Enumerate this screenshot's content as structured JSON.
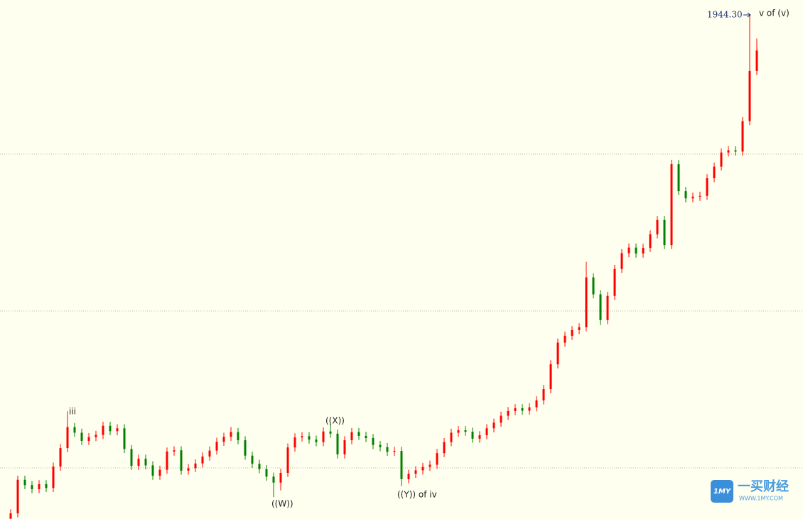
{
  "chart_data": {
    "type": "candlestick",
    "ylim": [
      1783.7,
      1949.1
    ],
    "gridlines": [
      1800,
      1850,
      1900
    ],
    "grid": true,
    "up_color": "#ff0000",
    "down_color": "#008000",
    "annotations": [
      "iii",
      "((W))",
      "((X))",
      "((Y)) of iv",
      "v of (v)"
    ],
    "high_label": "1944.30",
    "open": [
      1783.8,
      1785.5,
      1796.2,
      1794.5,
      1793.2,
      1794.8,
      1793.6,
      1800.4,
      1806.3,
      1813.0,
      1811.2,
      1808.6,
      1809.8,
      1810.5,
      1813.4,
      1811.7,
      1812.6,
      1806.0,
      1800.6,
      1802.9,
      1800.8,
      1797.5,
      1799.4,
      1805.2,
      1805.6,
      1799.1,
      1799.9,
      1801.4,
      1803.6,
      1805.5,
      1808.3,
      1809.9,
      1811.4,
      1808.8,
      1803.9,
      1801.3,
      1799.6,
      1797.2,
      1795.3,
      1798.4,
      1806.5,
      1809.7,
      1810.1,
      1809.0,
      1808.2,
      1811.6,
      1810.9,
      1804.3,
      1808.8,
      1811.4,
      1810.2,
      1809.5,
      1807.3,
      1806.6,
      1805.1,
      1805.4,
      1796.4,
      1798.1,
      1799.2,
      1800.3,
      1801.0,
      1804.7,
      1808.2,
      1811.2,
      1812.0,
      1811.5,
      1809.3,
      1810.4,
      1812.6,
      1814.4,
      1816.6,
      1818.1,
      1819.0,
      1818.2,
      1819.3,
      1821.5,
      1825.1,
      1833.0,
      1839.9,
      1842.1,
      1843.9,
      1844.8,
      1860.7,
      1855.3,
      1847.1,
      1854.8,
      1863.4,
      1868.4,
      1870.2,
      1868.3,
      1870.1,
      1874.4,
      1879.0,
      1871.0,
      1896.8,
      1888.2,
      1885.9,
      1886.4,
      1886.7,
      1892.3,
      1896.0,
      1900.5,
      1901.2,
      1900.8,
      1910.5,
      1926.5
    ],
    "high": [
      1786.8,
      1797.5,
      1797.5,
      1795.8,
      1796.1,
      1796.1,
      1801.7,
      1807.6,
      1818.0,
      1814.3,
      1812.5,
      1811.1,
      1811.8,
      1814.7,
      1814.7,
      1813.9,
      1813.9,
      1807.3,
      1804.2,
      1804.2,
      1802.1,
      1800.7,
      1806.5,
      1806.9,
      1806.9,
      1801.2,
      1802.7,
      1804.9,
      1806.8,
      1809.6,
      1811.2,
      1813.0,
      1812.7,
      1810.1,
      1805.2,
      1802.6,
      1800.9,
      1798.5,
      1799.7,
      1807.8,
      1811.0,
      1811.4,
      1811.4,
      1810.3,
      1812.9,
      1814.2,
      1812.2,
      1810.1,
      1812.7,
      1812.7,
      1811.5,
      1810.8,
      1808.6,
      1807.9,
      1806.7,
      1806.7,
      1799.4,
      1800.5,
      1801.6,
      1802.3,
      1806.0,
      1809.5,
      1812.5,
      1813.3,
      1813.3,
      1812.8,
      1811.7,
      1813.9,
      1815.7,
      1817.9,
      1819.4,
      1820.3,
      1820.3,
      1820.6,
      1822.8,
      1826.4,
      1834.3,
      1841.2,
      1843.4,
      1845.2,
      1846.1,
      1865.7,
      1862.0,
      1856.6,
      1856.1,
      1864.7,
      1869.7,
      1871.5,
      1871.5,
      1871.4,
      1875.7,
      1880.3,
      1880.3,
      1898.2,
      1898.1,
      1889.5,
      1887.7,
      1888.0,
      1893.6,
      1897.3,
      1901.8,
      1902.5,
      1902.5,
      1911.8,
      1944.3,
      1936.8
    ],
    "low": [
      1783.7,
      1784.2,
      1793.2,
      1791.9,
      1791.9,
      1792.3,
      1792.3,
      1799.1,
      1805.0,
      1809.9,
      1807.3,
      1807.3,
      1808.5,
      1809.2,
      1810.4,
      1810.4,
      1804.7,
      1799.3,
      1799.3,
      1799.5,
      1796.2,
      1796.2,
      1798.1,
      1803.9,
      1797.8,
      1797.8,
      1798.6,
      1800.1,
      1802.3,
      1804.2,
      1807.0,
      1808.6,
      1807.5,
      1802.6,
      1800.0,
      1798.3,
      1795.9,
      1790.7,
      1792.8,
      1797.1,
      1805.2,
      1808.4,
      1807.7,
      1806.9,
      1806.9,
      1809.6,
      1803.0,
      1803.0,
      1807.5,
      1808.9,
      1808.2,
      1806.0,
      1805.3,
      1803.8,
      1803.8,
      1794.2,
      1795.1,
      1796.8,
      1797.9,
      1799.0,
      1799.7,
      1803.4,
      1806.9,
      1809.9,
      1810.2,
      1808.0,
      1808.0,
      1809.1,
      1811.3,
      1813.1,
      1815.3,
      1816.8,
      1816.9,
      1816.9,
      1818.0,
      1820.2,
      1823.8,
      1831.7,
      1838.6,
      1840.8,
      1842.6,
      1843.5,
      1854.0,
      1845.5,
      1845.8,
      1853.5,
      1862.1,
      1867.1,
      1867.0,
      1867.0,
      1868.8,
      1873.1,
      1869.7,
      1869.7,
      1886.9,
      1884.6,
      1884.6,
      1885.1,
      1885.4,
      1891.0,
      1894.7,
      1899.2,
      1899.5,
      1899.5,
      1909.2,
      1925.2
    ],
    "close": [
      1785.5,
      1796.2,
      1794.5,
      1793.2,
      1794.8,
      1793.6,
      1800.4,
      1806.3,
      1813.0,
      1811.2,
      1808.6,
      1809.8,
      1810.5,
      1813.4,
      1811.7,
      1812.6,
      1806.0,
      1800.6,
      1802.9,
      1800.8,
      1797.5,
      1799.4,
      1805.2,
      1805.6,
      1799.1,
      1799.9,
      1801.4,
      1803.6,
      1805.5,
      1808.3,
      1809.9,
      1811.4,
      1808.8,
      1803.9,
      1801.3,
      1799.6,
      1797.2,
      1795.3,
      1798.4,
      1806.5,
      1809.7,
      1810.1,
      1809.0,
      1808.2,
      1811.6,
      1810.9,
      1804.3,
      1808.8,
      1811.4,
      1810.2,
      1809.5,
      1807.3,
      1806.6,
      1805.1,
      1805.4,
      1796.4,
      1798.1,
      1799.2,
      1800.3,
      1801.0,
      1804.7,
      1808.2,
      1811.2,
      1812.0,
      1811.5,
      1809.3,
      1810.4,
      1812.6,
      1814.4,
      1816.6,
      1818.1,
      1819.0,
      1818.2,
      1819.3,
      1821.5,
      1825.1,
      1833.0,
      1839.9,
      1842.1,
      1843.9,
      1844.8,
      1860.7,
      1855.3,
      1847.1,
      1854.8,
      1863.4,
      1868.4,
      1870.2,
      1868.3,
      1870.1,
      1874.4,
      1879.0,
      1871.0,
      1896.8,
      1888.2,
      1885.9,
      1886.4,
      1886.7,
      1892.3,
      1896.0,
      1900.5,
      1901.2,
      1900.8,
      1910.5,
      1926.5,
      1933.0
    ]
  },
  "watermark": {
    "mark": "1MY",
    "name": "一买财经",
    "url": "WWW.1MY.COM"
  }
}
